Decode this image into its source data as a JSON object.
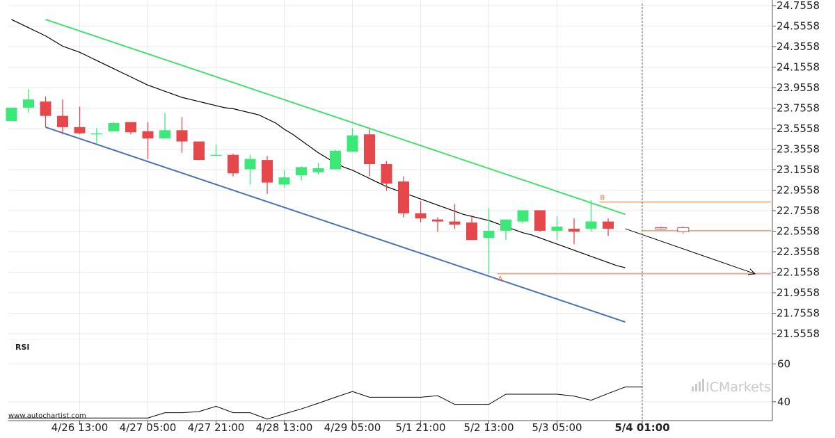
{
  "chart_data": {
    "type": "candlestick",
    "attribution": "www.autochartist.com",
    "brand": "ICMarkets",
    "price_axis": {
      "ticks": [
        "24.7558",
        "24.5558",
        "24.3558",
        "24.1558",
        "23.9558",
        "23.7558",
        "23.5558",
        "23.3558",
        "23.1558",
        "22.9558",
        "22.7558",
        "22.5558",
        "22.3558",
        "22.1558",
        "21.9558",
        "21.7558",
        "21.5558"
      ],
      "range": [
        21.5558,
        24.7558
      ]
    },
    "time_axis": {
      "labels": [
        "4/26 13:00",
        "4/27 05:00",
        "4/27 21:00",
        "4/28 13:00",
        "4/29 05:00",
        "5/1 21:00",
        "5/2 13:00",
        "5/3 05:00",
        "5/4 01:00"
      ]
    },
    "colors": {
      "up": "#3be878",
      "down": "#e5474a",
      "channel_upper": "#44e06e",
      "channel_lower": "#4a73b5",
      "moving_average": "#000000",
      "level_lines": "#e8703a",
      "projection": "#000000",
      "rsi": "#000000"
    },
    "candles": [
      {
        "o": 23.63,
        "h": 23.76,
        "l": 23.63,
        "c": 23.76
      },
      {
        "o": 23.76,
        "h": 23.94,
        "l": 23.71,
        "c": 23.84
      },
      {
        "o": 23.82,
        "h": 23.87,
        "l": 23.57,
        "c": 23.68
      },
      {
        "o": 23.68,
        "h": 23.84,
        "l": 23.5,
        "c": 23.57
      },
      {
        "o": 23.57,
        "h": 23.77,
        "l": 23.5,
        "c": 23.51
      },
      {
        "o": 23.51,
        "h": 23.56,
        "l": 23.41,
        "c": 23.51
      },
      {
        "o": 23.53,
        "h": 23.62,
        "l": 23.53,
        "c": 23.61
      },
      {
        "o": 23.62,
        "h": 23.62,
        "l": 23.5,
        "c": 23.52
      },
      {
        "o": 23.53,
        "h": 23.62,
        "l": 23.26,
        "c": 23.46
      },
      {
        "o": 23.46,
        "h": 23.71,
        "l": 23.46,
        "c": 23.54
      },
      {
        "o": 23.54,
        "h": 23.67,
        "l": 23.32,
        "c": 23.43
      },
      {
        "o": 23.43,
        "h": 23.43,
        "l": 23.25,
        "c": 23.25
      },
      {
        "o": 23.3,
        "h": 23.4,
        "l": 23.29,
        "c": 23.3
      },
      {
        "o": 23.3,
        "h": 23.31,
        "l": 23.09,
        "c": 23.12
      },
      {
        "o": 23.16,
        "h": 23.3,
        "l": 23.01,
        "c": 23.26
      },
      {
        "o": 23.25,
        "h": 23.29,
        "l": 22.92,
        "c": 23.03
      },
      {
        "o": 23.01,
        "h": 23.15,
        "l": 22.98,
        "c": 23.08
      },
      {
        "o": 23.1,
        "h": 23.19,
        "l": 23.05,
        "c": 23.18
      },
      {
        "o": 23.13,
        "h": 23.22,
        "l": 23.11,
        "c": 23.17
      },
      {
        "o": 23.16,
        "h": 23.35,
        "l": 23.16,
        "c": 23.34
      },
      {
        "o": 23.33,
        "h": 23.56,
        "l": 23.33,
        "c": 23.49
      },
      {
        "o": 23.5,
        "h": 23.55,
        "l": 23.09,
        "c": 23.21
      },
      {
        "o": 23.21,
        "h": 23.24,
        "l": 22.95,
        "c": 23.02
      },
      {
        "o": 23.04,
        "h": 23.09,
        "l": 22.69,
        "c": 22.73
      },
      {
        "o": 22.73,
        "h": 22.85,
        "l": 22.64,
        "c": 22.68
      },
      {
        "o": 22.67,
        "h": 22.69,
        "l": 22.55,
        "c": 22.65
      },
      {
        "o": 22.65,
        "h": 22.82,
        "l": 22.58,
        "c": 22.62
      },
      {
        "o": 22.64,
        "h": 22.71,
        "l": 22.47,
        "c": 22.47
      },
      {
        "o": 22.49,
        "h": 22.78,
        "l": 22.14,
        "c": 22.56
      },
      {
        "o": 22.56,
        "h": 22.67,
        "l": 22.47,
        "c": 22.67
      },
      {
        "o": 22.65,
        "h": 22.75,
        "l": 22.63,
        "c": 22.76
      },
      {
        "o": 22.76,
        "h": 22.76,
        "l": 22.55,
        "c": 22.56
      },
      {
        "o": 22.56,
        "h": 22.7,
        "l": 22.47,
        "c": 22.6
      },
      {
        "o": 22.58,
        "h": 22.68,
        "l": 22.43,
        "c": 22.55
      },
      {
        "o": 22.58,
        "h": 22.86,
        "l": 22.55,
        "c": 22.65
      },
      {
        "o": 22.65,
        "h": 22.68,
        "l": 22.51,
        "c": 22.58
      }
    ],
    "projected_candles": [
      {
        "o": 22.59,
        "h": 22.6,
        "l": 22.57,
        "c": 22.58
      },
      {
        "o": 22.59,
        "h": 22.6,
        "l": 22.53,
        "c": 22.55
      }
    ],
    "moving_average": [
      24.62,
      24.58,
      24.54,
      24.5,
      24.46,
      24.41,
      24.36,
      24.33,
      24.3,
      24.26,
      24.22,
      24.18,
      24.14,
      24.1,
      24.06,
      24.02,
      23.98,
      23.95,
      23.92,
      23.89,
      23.86,
      23.84,
      23.82,
      23.8,
      23.78,
      23.76,
      23.75,
      23.73,
      23.71,
      23.69,
      23.65,
      23.61,
      23.55,
      23.5,
      23.44,
      23.38,
      23.32,
      23.27,
      23.22,
      23.18,
      23.15,
      23.11,
      23.07,
      23.03,
      22.99,
      22.96,
      22.93,
      22.9,
      22.87,
      22.84,
      22.81,
      22.78,
      22.75,
      22.72,
      22.7,
      22.68,
      22.66,
      22.63,
      22.6,
      22.57,
      22.54,
      22.52,
      22.49,
      22.46,
      22.43,
      22.4,
      22.37,
      22.34,
      22.31,
      22.28,
      22.25,
      22.22,
      22.2
    ],
    "channel": {
      "upper": {
        "from": {
          "index": 2,
          "price": 24.62
        },
        "to": {
          "index": 36,
          "price": 22.72
        }
      },
      "lower": {
        "from": {
          "index": 2,
          "price": 23.57
        },
        "to": {
          "index": 36,
          "price": 21.67
        }
      }
    },
    "levels": [
      {
        "label": "B",
        "price": 22.84,
        "from_index": 34.5
      },
      {
        "label": "A",
        "price": 22.14,
        "from_index": 28.5
      },
      {
        "label": "",
        "price": 22.56,
        "from_index": 37
      }
    ],
    "projection_arrow": {
      "from": {
        "index": 36,
        "price": 22.58
      },
      "to": {
        "index": 42,
        "price": 22.14
      }
    },
    "rsi": {
      "label": "RSI",
      "ticks": [
        60,
        40
      ],
      "range": [
        30,
        65
      ],
      "values": [
        31.4,
        31.4,
        31.4,
        31.4,
        31.4,
        31.4,
        31.4,
        31.4,
        31.4,
        34.2,
        34.2,
        34.8,
        37.6,
        34.2,
        34.2,
        30.8,
        33.6,
        36.2,
        39.2,
        42.4,
        45.4,
        42.4,
        42.4,
        42.4,
        42.4,
        43.2,
        38.6,
        38.6,
        38.6,
        44.0,
        44.0,
        44.0,
        44.0,
        43.0,
        40.8,
        44.4,
        47.8,
        47.8
      ]
    }
  }
}
